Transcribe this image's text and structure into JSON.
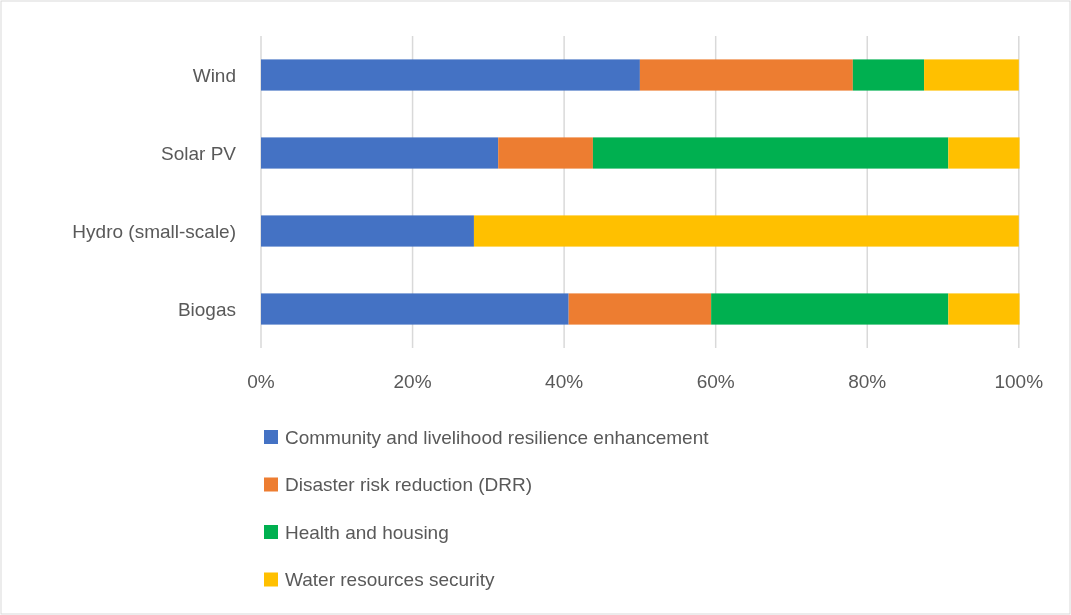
{
  "chart_data": {
    "type": "bar",
    "orientation": "horizontal",
    "stacked": true,
    "categories": [
      "Wind",
      "Solar PV",
      "Hydro (small-scale)",
      "Biogas"
    ],
    "series": [
      {
        "name": "Community and livelihood resilience enhancement",
        "color": "#4472c4",
        "values": [
          50,
          31.3,
          28.1,
          40.6
        ]
      },
      {
        "name": "Disaster risk reduction (DRR)",
        "color": "#ed7d31",
        "values": [
          28.1,
          12.5,
          0,
          18.8
        ]
      },
      {
        "name": "Health and housing",
        "color": "#00b050",
        "values": [
          9.4,
          46.9,
          0,
          31.3
        ]
      },
      {
        "name": "Water resources security",
        "color": "#ffc000",
        "values": [
          12.5,
          9.4,
          71.9,
          9.4
        ]
      }
    ],
    "xlim": [
      0,
      100
    ],
    "xticks": [
      {
        "value": 0,
        "label": "0%"
      },
      {
        "value": 20,
        "label": "20%"
      },
      {
        "value": 40,
        "label": "40%"
      },
      {
        "value": 60,
        "label": "60%"
      },
      {
        "value": 80,
        "label": "80%"
      },
      {
        "value": 100,
        "label": "100%"
      }
    ],
    "grid": "x",
    "legend": "bottom"
  }
}
